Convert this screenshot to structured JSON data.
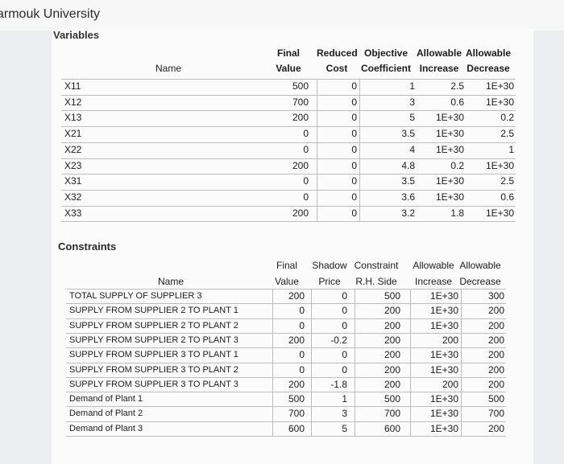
{
  "header": {
    "title": "armouk University"
  },
  "variables": {
    "section_label": "Variables",
    "name_header": "Name",
    "headers": [
      [
        "Final",
        "Value"
      ],
      [
        "Reduced",
        "Cost"
      ],
      [
        "Objective",
        "Coefficient"
      ],
      [
        "Allowable",
        "Increase"
      ],
      [
        "Allowable",
        "Decrease"
      ]
    ],
    "rows": [
      {
        "name": "X11",
        "vals": [
          "500",
          "0",
          "1",
          "2.5",
          "1E+30"
        ]
      },
      {
        "name": "X12",
        "vals": [
          "700",
          "0",
          "3",
          "0.6",
          "1E+30"
        ]
      },
      {
        "name": "X13",
        "vals": [
          "200",
          "0",
          "5",
          "1E+30",
          "0.2"
        ]
      },
      {
        "name": "X21",
        "vals": [
          "0",
          "0",
          "3.5",
          "1E+30",
          "2.5"
        ]
      },
      {
        "name": "X22",
        "vals": [
          "0",
          "0",
          "4",
          "1E+30",
          "1"
        ]
      },
      {
        "name": "X23",
        "vals": [
          "200",
          "0",
          "4.8",
          "0.2",
          "1E+30"
        ]
      },
      {
        "name": "X31",
        "vals": [
          "0",
          "0",
          "3.5",
          "1E+30",
          "2.5"
        ]
      },
      {
        "name": "X32",
        "vals": [
          "0",
          "0",
          "3.6",
          "1E+30",
          "0.6"
        ]
      },
      {
        "name": "X33",
        "vals": [
          "200",
          "0",
          "3.2",
          "1.8",
          "1E+30"
        ]
      }
    ]
  },
  "constraints": {
    "section_label": "Constraints",
    "name_header": "Name",
    "headers": [
      [
        "Final",
        "Value"
      ],
      [
        "Shadow",
        "Price"
      ],
      [
        "Constraint",
        "R.H. Side"
      ],
      [
        "Allowable",
        "Increase"
      ],
      [
        "Allowable",
        "Decrease"
      ]
    ],
    "rows": [
      {
        "name": "TOTAL SUPPLY OF SUPPLIER 3",
        "vals": [
          "200",
          "0",
          "500",
          "1E+30",
          "300"
        ]
      },
      {
        "name": "SUPPLY FROM SUPPLIER 2 TO PLANT 1",
        "vals": [
          "0",
          "0",
          "200",
          "1E+30",
          "200"
        ]
      },
      {
        "name": "SUPPLY FROM SUPPLIER 2 TO PLANT 2",
        "vals": [
          "0",
          "0",
          "200",
          "1E+30",
          "200"
        ]
      },
      {
        "name": "SUPPLY FROM SUPPLIER 2 TO PLANT 3",
        "vals": [
          "200",
          "-0.2",
          "200",
          "200",
          "200"
        ]
      },
      {
        "name": "SUPPLY FROM SUPPLIER 3 TO PLANT 1",
        "vals": [
          "0",
          "0",
          "200",
          "1E+30",
          "200"
        ]
      },
      {
        "name": "SUPPLY FROM SUPPLIER 3 TO PLANT 2",
        "vals": [
          "0",
          "0",
          "200",
          "1E+30",
          "200"
        ]
      },
      {
        "name": "SUPPLY FROM SUPPLIER 3 TO PLANT 3",
        "vals": [
          "200",
          "-1.8",
          "200",
          "200",
          "200"
        ]
      },
      {
        "name": "Demand of Plant 1",
        "vals": [
          "500",
          "1",
          "500",
          "1E+30",
          "500"
        ]
      },
      {
        "name": "Demand of Plant 2",
        "vals": [
          "700",
          "3",
          "700",
          "1E+30",
          "700"
        ]
      },
      {
        "name": "Demand of Plant 3",
        "vals": [
          "600",
          "5",
          "600",
          "1E+30",
          "200"
        ]
      }
    ]
  }
}
